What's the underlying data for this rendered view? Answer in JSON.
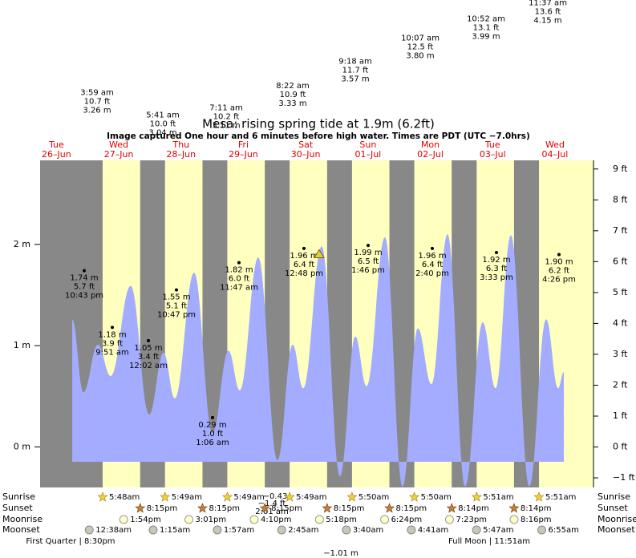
{
  "chart_data": {
    "type": "area",
    "title": "Mesa: rising  spring tide at 1.9m (6.2ft)",
    "subtitle": "Image captured One hour and 6 minutes before high water. Times are PDT (UTC −7.0hrs)",
    "categories": [
      "Tue",
      "Wed",
      "Thu",
      "Fri",
      "Sat",
      "Sun",
      "Mon",
      "Tue",
      "Wed"
    ],
    "dates": [
      "26–Jun",
      "27–Jun",
      "28–Jun",
      "29–Jun",
      "30–Jun",
      "01–Jul",
      "02–Jul",
      "03–Jul",
      "04–Jul"
    ],
    "x": [
      "06-26 18:05",
      "06-26 22:24",
      "06-27 03:58",
      "06-27 08:54",
      "06-27 16:36",
      "06-27 23:43",
      "06-28 05:17",
      "06-28 09:36",
      "06-28 17:01",
      "06-29 00:07",
      "06-29 06:17",
      "06-29 10:38",
      "06-29 17:44",
      "06-30 01:09",
      "06-30 07:00",
      "06-30 11:02",
      "06-30 18:09",
      "07-01 01:15",
      "07-01 07:06",
      "07-01 11:26",
      "07-01 18:32",
      "07-02 01:19",
      "07-02 07:12",
      "07-02 12:27",
      "07-02 18:38",
      "07-03 01:25",
      "07-03 08:12",
      "07-03 13:09",
      "07-03 19:02",
      "07-04 02:08",
      "07-04 08:37",
      "07-04 13:15",
      "07-04 15:25"
    ],
    "series": [
      {
        "color": "#a3acff",
        "values": [
          1.26,
          0.54,
          1.01,
          0.7,
          1.59,
          0.32,
          0.93,
          0.48,
          1.72,
          0.14,
          0.95,
          0.56,
          1.87,
          -0.13,
          1.01,
          0.58,
          1.98,
          -0.29,
          1.09,
          0.6,
          2.07,
          -0.39,
          1.17,
          0.62,
          2.1,
          -0.39,
          1.23,
          0.58,
          2.09,
          -0.39,
          1.26,
          0.58,
          0.74
        ]
      }
    ],
    "ylim": [
      -0.4,
      2.83
    ],
    "yticks": [
      {
        "value": 0,
        "label": "0 m"
      },
      {
        "value": 1,
        "label": "1 m"
      },
      {
        "value": 2,
        "label": "2 m"
      }
    ],
    "y2lim": [
      -1.31,
      9.28
    ],
    "y2ticks": [
      {
        "value": -1,
        "label": "−1 ft"
      },
      {
        "value": 0,
        "label": "0 ft"
      },
      {
        "value": 1,
        "label": "1 ft"
      },
      {
        "value": 2,
        "label": "2 ft"
      },
      {
        "value": 3,
        "label": "3 ft"
      },
      {
        "value": 4,
        "label": "4 ft"
      },
      {
        "value": 5,
        "label": "5 ft"
      },
      {
        "value": 6,
        "label": "6 ft"
      },
      {
        "value": 7,
        "label": "7 ft"
      },
      {
        "value": 8,
        "label": "8 ft"
      },
      {
        "value": 9,
        "label": "9 ft"
      }
    ],
    "background_color": "#888888",
    "daylight_color": "#ffffc0",
    "now": {
      "time": "06-30 17:12",
      "value": 1.9
    },
    "high_tide_labels": [
      {
        "time": "3:59 am",
        "ft": {
          "value": 10.7,
          "label": "10.7 ft"
        },
        "m": {
          "value": 3.26,
          "label": "3.26 m"
        }
      },
      {
        "time": "5:41 am",
        "ft": {
          "value": 10.0,
          "label": "10.0 ft"
        },
        "m": {
          "value": 3.04,
          "label": "3.04 m"
        }
      },
      {
        "time": "7:11 am",
        "ft": {
          "value": 10.2,
          "label": "10.2 ft"
        },
        "m": {
          "value": 3.11,
          "label": "3.11 m"
        }
      },
      {
        "time": "8:22 am",
        "ft": {
          "value": 10.9,
          "label": "10.9 ft"
        },
        "m": {
          "value": 3.33,
          "label": "3.33 m"
        }
      },
      {
        "time": "9:18 am",
        "ft": {
          "value": 11.7,
          "label": "11.7 ft"
        },
        "m": {
          "value": 3.57,
          "label": "3.57 m"
        }
      },
      {
        "time": "10:07 am",
        "ft": {
          "value": 12.5,
          "label": "12.5 ft"
        },
        "m": {
          "value": 3.8,
          "label": "3.80 m"
        }
      },
      {
        "time": "10:52 am",
        "ft": {
          "value": 13.1,
          "label": "13.1 ft"
        },
        "m": {
          "value": 3.99,
          "label": "3.99 m"
        }
      },
      {
        "time": "11:37 am",
        "ft": {
          "value": 13.6,
          "label": "13.6 ft"
        },
        "m": {
          "value": 4.15,
          "label": "4.15 m"
        }
      }
    ],
    "point_labels": [
      {
        "m": {
          "value": 1.74,
          "label": "1.74 m"
        },
        "ft": {
          "value": 5.7,
          "label": "5.7 ft"
        },
        "time": "10:43 pm"
      },
      {
        "m": {
          "value": 1.18,
          "label": "1.18 m"
        },
        "ft": {
          "value": 3.9,
          "label": "3.9 ft"
        },
        "time": "9:51 am"
      },
      {
        "m": {
          "value": 1.05,
          "label": "1.05 m"
        },
        "ft": {
          "value": 3.4,
          "label": "3.4 ft"
        },
        "time": "12:02 am"
      },
      {
        "m": {
          "value": 1.55,
          "label": "1.55 m"
        },
        "ft": {
          "value": 5.1,
          "label": "5.1 ft"
        },
        "time": "10:47 pm"
      },
      {
        "m": {
          "value": 0.29,
          "label": "0.29 m"
        },
        "ft": {
          "value": 1.0,
          "label": "1.0 ft"
        },
        "time": "1:06 am"
      },
      {
        "m": {
          "value": 1.82,
          "label": "1.82 m"
        },
        "ft": {
          "value": 6.0,
          "label": "6.0 ft"
        },
        "time": "11:47 am"
      },
      {
        "m": {
          "value": 1.96,
          "label": "1.96 m"
        },
        "ft": {
          "value": 6.4,
          "label": "6.4 ft"
        },
        "time": "12:48 pm"
      },
      {
        "m": {
          "value": 1.99,
          "label": "1.99 m"
        },
        "ft": {
          "value": 6.5,
          "label": "6.5 ft"
        },
        "time": "1:46 pm"
      },
      {
        "m": {
          "value": 1.96,
          "label": "1.96 m"
        },
        "ft": {
          "value": 6.4,
          "label": "6.4 ft"
        },
        "time": "2:40 pm"
      },
      {
        "m": {
          "value": 1.92,
          "label": "1.92 m"
        },
        "ft": {
          "value": 6.3,
          "label": "6.3 ft"
        },
        "time": "3:33 pm"
      },
      {
        "m": {
          "value": 1.9,
          "label": "1.90 m"
        },
        "ft": {
          "value": 6.2,
          "label": "6.2 ft"
        },
        "time": "4:26 pm"
      }
    ],
    "stray_labels": [
      "−0.43",
      "−1.4 ft",
      "2:01 am",
      "−1.01 m"
    ],
    "row_labels": [
      "Sunrise",
      "Sunset",
      "Moonrise",
      "Moonset"
    ],
    "sunrise": [
      "5:48am",
      "5:49am",
      "5:49am",
      "5:49am",
      "5:50am",
      "5:50am",
      "5:51am",
      "5:51am"
    ],
    "sunset": [
      "8:15pm",
      "8:15pm",
      "8:15pm",
      "8:15pm",
      "8:15pm",
      "8:14pm",
      "8:14pm"
    ],
    "moonrise": [
      "1:54pm",
      "3:01pm",
      "4:10pm",
      "5:18pm",
      "6:24pm",
      "7:23pm",
      "8:16pm"
    ],
    "moonset": [
      "12:38am",
      "1:15am",
      "1:57am",
      "2:45am",
      "3:40am",
      "4:41am",
      "5:47am",
      "6:55am"
    ],
    "moon_phases": [
      "First Quarter | 8:30pm",
      "Full Moon | 11:51am"
    ]
  }
}
